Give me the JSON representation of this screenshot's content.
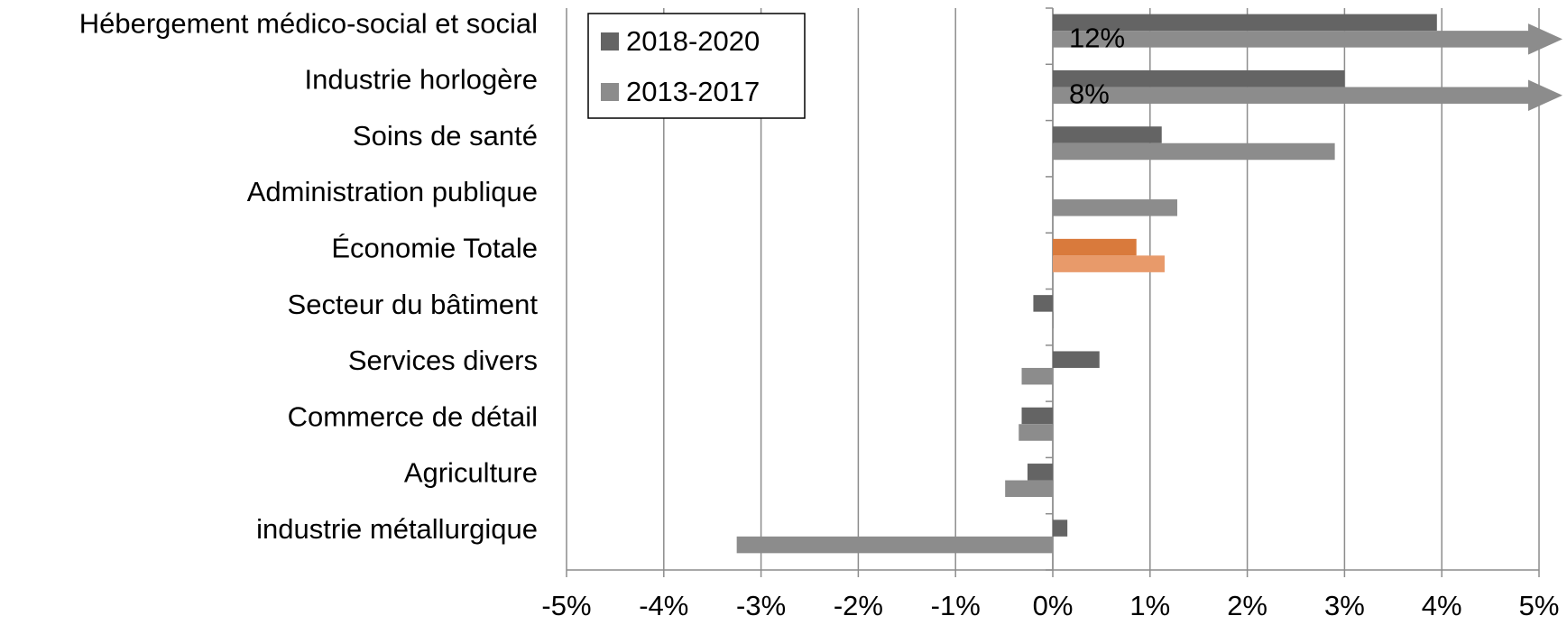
{
  "chart_data": {
    "type": "hbar",
    "categories": [
      "Hébergement médico-social et social",
      "Industrie horlogère",
      "Soins de santé",
      "Administration publique",
      "Économie Totale",
      "Secteur du bâtiment",
      "Services divers",
      "Commerce de détail",
      "Agriculture",
      "industrie métallurgique"
    ],
    "series": [
      {
        "name": "2018-2020",
        "color": "#646464",
        "colors": [
          "#646464",
          "#646464",
          "#646464",
          "#646464",
          "#d97a3c",
          "#646464",
          "#646464",
          "#646464",
          "#646464",
          "#646464"
        ],
        "values": [
          3.95,
          3.0,
          1.12,
          null,
          0.86,
          -0.2,
          0.48,
          -0.32,
          -0.26,
          0.15
        ]
      },
      {
        "name": "2013-2017",
        "color": "#8c8c8c",
        "colors": [
          "#8c8c8c",
          "#8c8c8c",
          "#8c8c8c",
          "#8c8c8c",
          "#e89a6a",
          "#8c8c8c",
          "#8c8c8c",
          "#8c8c8c",
          "#8c8c8c",
          "#8c8c8c"
        ],
        "values": [
          12,
          8,
          2.9,
          1.28,
          1.15,
          0.01,
          -0.32,
          -0.35,
          -0.49,
          -3.25
        ],
        "value_labels": [
          "12%",
          "8%",
          null,
          null,
          null,
          null,
          null,
          null,
          null,
          null
        ]
      }
    ],
    "xlim": [
      -5,
      5
    ],
    "xticks": [
      {
        "value": -5,
        "label": "-5%"
      },
      {
        "value": -4,
        "label": "-4%"
      },
      {
        "value": -3,
        "label": "-3%"
      },
      {
        "value": -2,
        "label": "-2%"
      },
      {
        "value": -1,
        "label": "-1%"
      },
      {
        "value": 0,
        "label": "0%"
      },
      {
        "value": 1,
        "label": "1%"
      },
      {
        "value": 2,
        "label": "2%"
      },
      {
        "value": 3,
        "label": "3%"
      },
      {
        "value": 4,
        "label": "4%"
      },
      {
        "value": 5,
        "label": "5%"
      }
    ],
    "grid": true,
    "legend": "upper-left"
  }
}
